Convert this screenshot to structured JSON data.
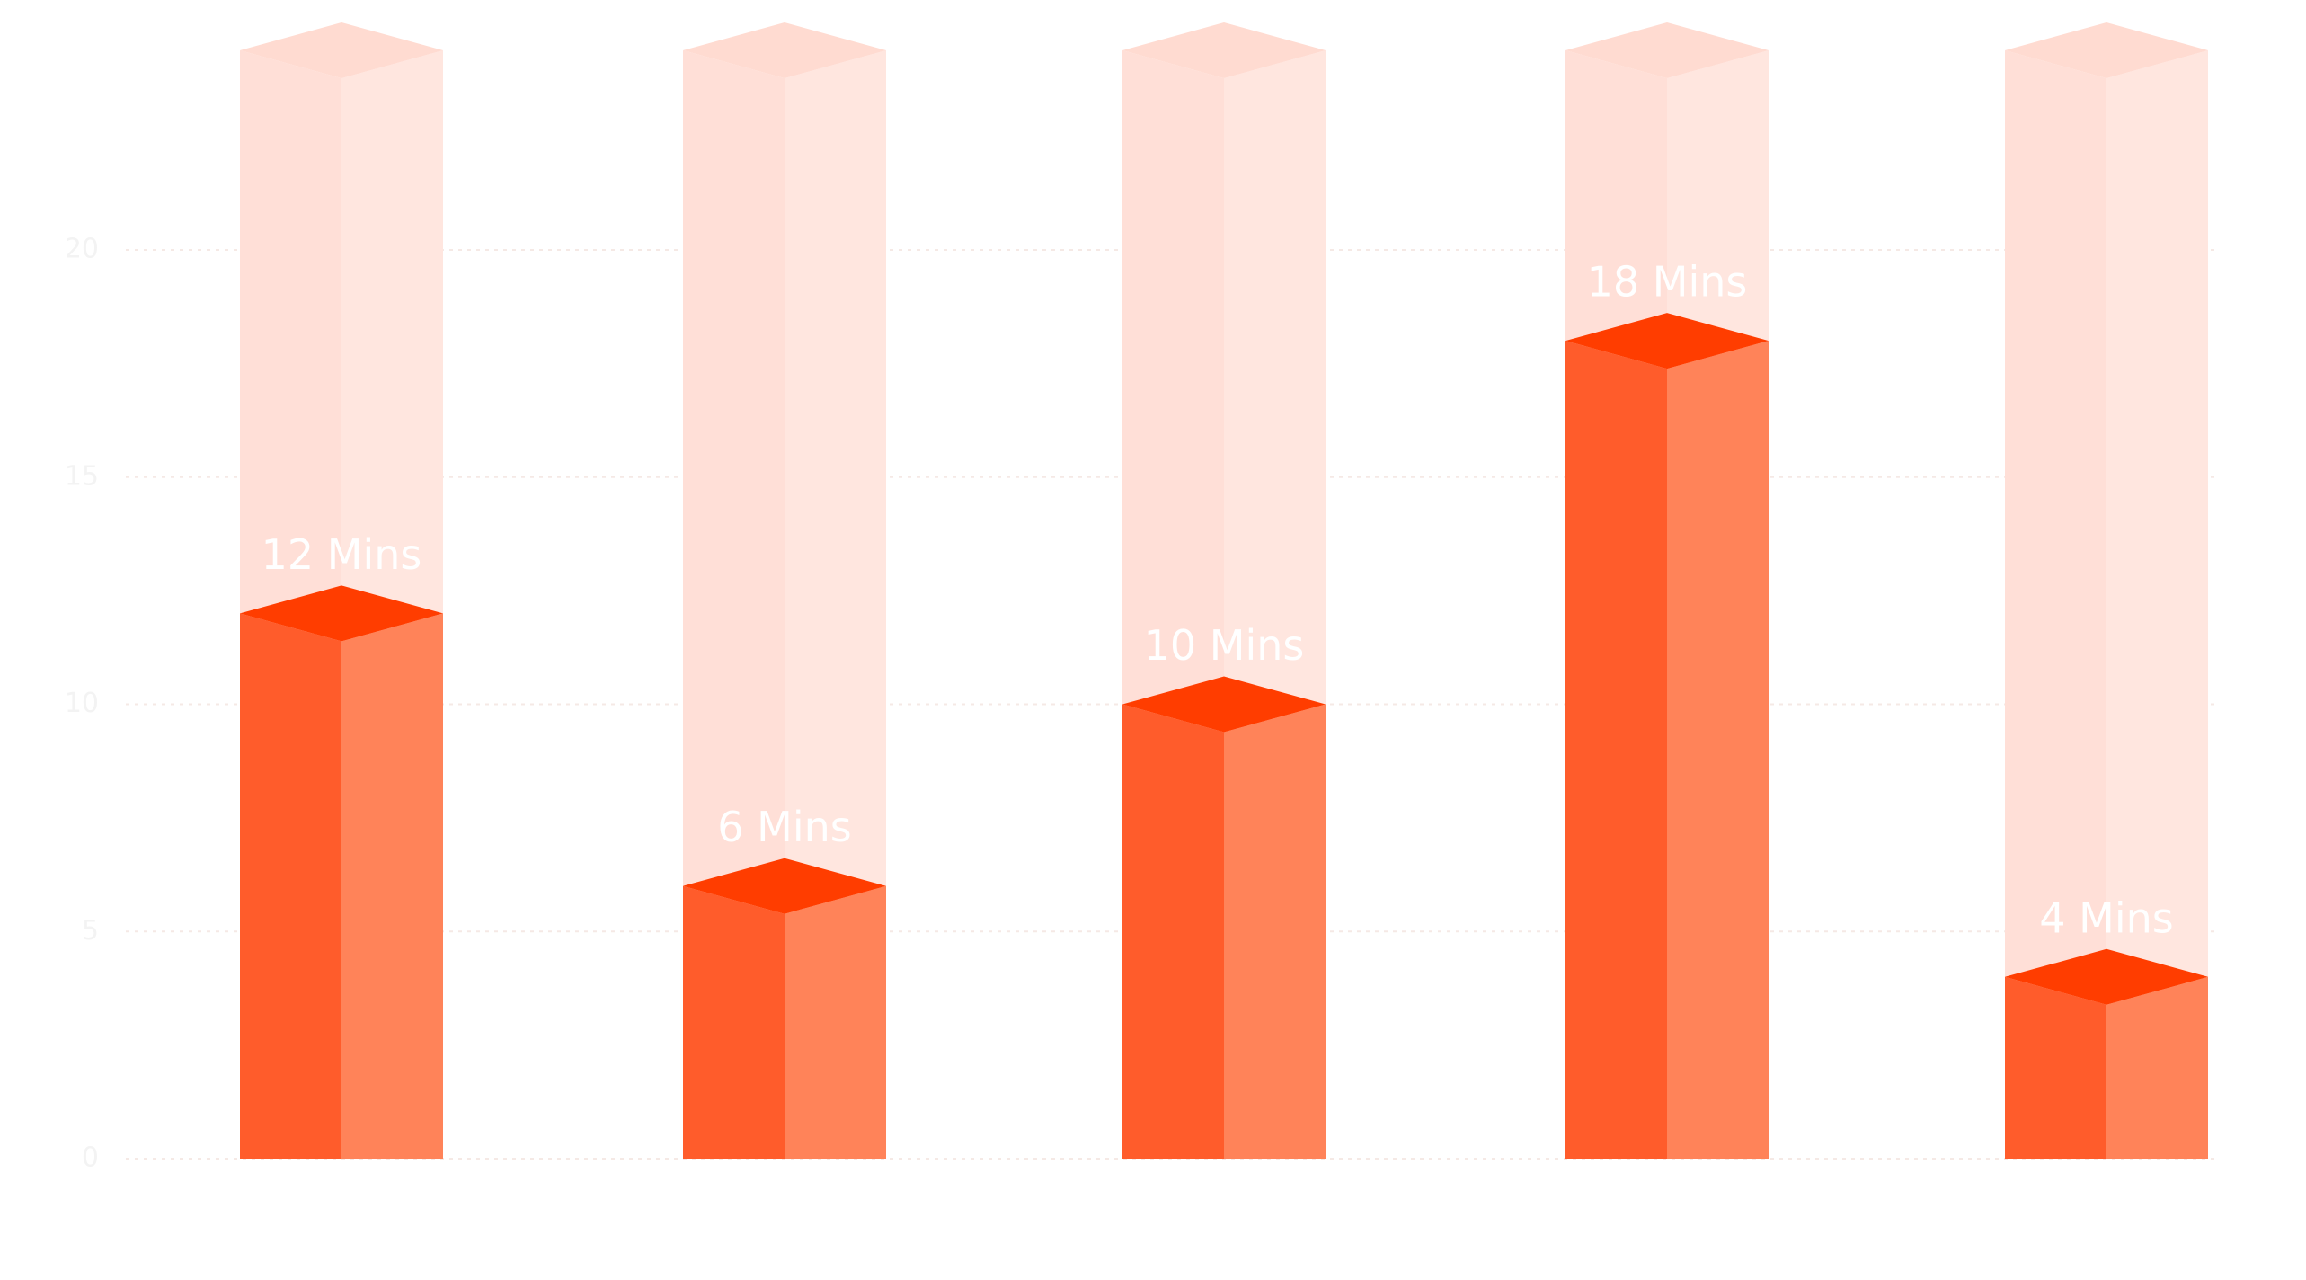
{
  "chart_data": {
    "type": "bar3d",
    "values": [
      12,
      6,
      10,
      18,
      4
    ],
    "value_labels": [
      "12 Mins",
      "6 Mins",
      "10 Mins",
      "18 Mins",
      "4 Mins"
    ],
    "ylim": [
      0,
      20
    ],
    "yticks": [
      0,
      5,
      10,
      15,
      20
    ],
    "grid": true,
    "color": "#ff5c2b"
  }
}
